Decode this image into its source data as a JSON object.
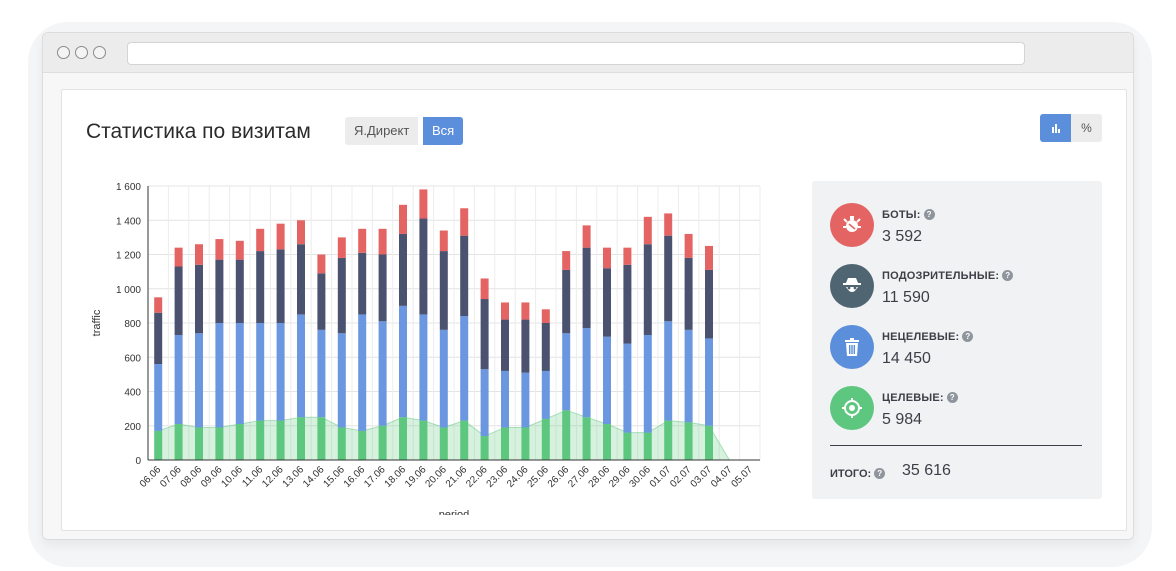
{
  "page": {
    "title": "Статистика по визитам",
    "filters": [
      "Я.Директ",
      "Вся"
    ],
    "view_percent_label": "%",
    "help_mark": "?"
  },
  "colors": {
    "bots": "#e46464",
    "suspicious": "#4a5270",
    "nontarget": "#6b96e0",
    "target": "#5ec77f",
    "accent": "#5b8edb"
  },
  "stats": [
    {
      "label": "БОТЫ:",
      "value": "3 592",
      "icon": "bot-icon"
    },
    {
      "label": "ПОДОЗРИТЕЛЬНЫЕ:",
      "value": "11 590",
      "icon": "spy-icon"
    },
    {
      "label": "НЕЦЕЛЕВЫЕ:",
      "value": "14 450",
      "icon": "trash-icon"
    },
    {
      "label": "ЦЕЛЕВЫЕ:",
      "value": "5 984",
      "icon": "target-icon"
    }
  ],
  "total": {
    "label": "ИТОГО:",
    "value": "35 616"
  },
  "chart_data": {
    "type": "bar",
    "stacked": true,
    "xlabel": "period",
    "ylabel": "traffic",
    "ylim": [
      0,
      1600
    ],
    "yticks": [
      0,
      200,
      400,
      600,
      800,
      1000,
      1200,
      1400,
      1600
    ],
    "ytick_labels": [
      "0",
      "200",
      "400",
      "600",
      "800",
      "1 000",
      "1 200",
      "1 400",
      "1 600"
    ],
    "grid": true,
    "categories": [
      "06.06",
      "07.06",
      "08.06",
      "09.06",
      "10.06",
      "11.06",
      "12.06",
      "13.06",
      "14.06",
      "15.06",
      "16.06",
      "17.06",
      "18.06",
      "19.06",
      "20.06",
      "21.06",
      "22.06",
      "23.06",
      "24.06",
      "25.06",
      "26.06",
      "27.06",
      "28.06",
      "29.06",
      "30.06",
      "01.07",
      "02.07",
      "03.07",
      "04.07",
      "05.07"
    ],
    "series": [
      {
        "key": "target",
        "values": [
          170,
          210,
          190,
          190,
          210,
          230,
          230,
          250,
          250,
          190,
          170,
          200,
          250,
          230,
          190,
          230,
          140,
          190,
          190,
          240,
          290,
          250,
          210,
          160,
          160,
          230,
          220,
          200,
          0,
          0
        ]
      },
      {
        "key": "nontarget",
        "values": [
          390,
          520,
          550,
          610,
          590,
          570,
          570,
          600,
          510,
          550,
          680,
          610,
          650,
          620,
          570,
          610,
          390,
          330,
          320,
          280,
          450,
          520,
          510,
          520,
          570,
          580,
          540,
          510,
          0,
          0
        ]
      },
      {
        "key": "suspicious",
        "values": [
          300,
          400,
          400,
          370,
          370,
          420,
          430,
          410,
          330,
          440,
          360,
          390,
          420,
          560,
          460,
          470,
          410,
          300,
          310,
          280,
          370,
          470,
          400,
          460,
          530,
          500,
          420,
          400,
          0,
          0
        ]
      },
      {
        "key": "bots",
        "values": [
          90,
          110,
          120,
          120,
          110,
          130,
          150,
          140,
          110,
          120,
          140,
          150,
          170,
          170,
          120,
          160,
          120,
          100,
          100,
          80,
          110,
          130,
          120,
          100,
          160,
          130,
          140,
          140,
          0,
          0
        ]
      }
    ],
    "area": {
      "key": "target",
      "values": [
        170,
        210,
        190,
        190,
        210,
        230,
        230,
        250,
        250,
        190,
        170,
        200,
        250,
        230,
        190,
        230,
        140,
        190,
        190,
        240,
        290,
        250,
        210,
        160,
        160,
        230,
        220,
        200,
        0,
        0
      ]
    }
  }
}
